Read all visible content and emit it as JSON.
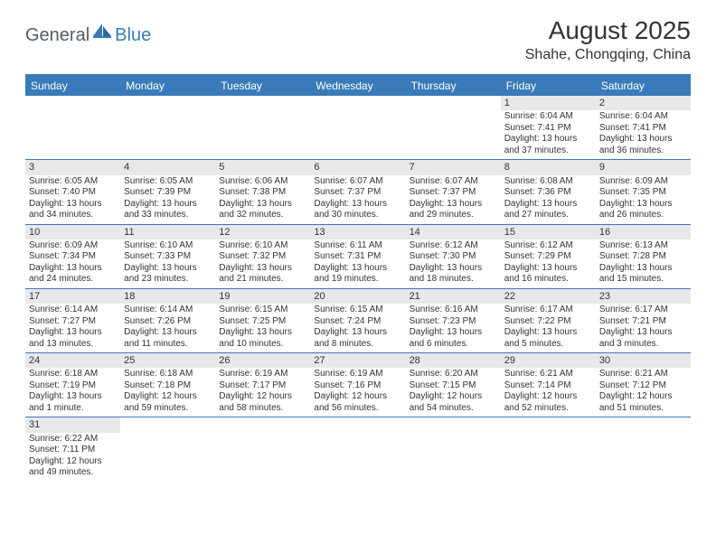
{
  "logo": {
    "general": "General",
    "blue": "Blue"
  },
  "title": "August 2025",
  "location": "Shahe, Chongqing, China",
  "colors": {
    "header_bg": "#3a7ab8",
    "header_text": "#ffffff",
    "daynum_bg": "#e7e8e9",
    "border": "#3a7ab8",
    "text": "#333333",
    "logo_gray": "#555c63",
    "logo_blue": "#3a7ab8"
  },
  "weekdays": [
    "Sunday",
    "Monday",
    "Tuesday",
    "Wednesday",
    "Thursday",
    "Friday",
    "Saturday"
  ],
  "weeks": [
    [
      null,
      null,
      null,
      null,
      null,
      {
        "n": "1",
        "sr": "Sunrise: 6:04 AM",
        "ss": "Sunset: 7:41 PM",
        "d1": "Daylight: 13 hours",
        "d2": "and 37 minutes."
      },
      {
        "n": "2",
        "sr": "Sunrise: 6:04 AM",
        "ss": "Sunset: 7:41 PM",
        "d1": "Daylight: 13 hours",
        "d2": "and 36 minutes."
      }
    ],
    [
      {
        "n": "3",
        "sr": "Sunrise: 6:05 AM",
        "ss": "Sunset: 7:40 PM",
        "d1": "Daylight: 13 hours",
        "d2": "and 34 minutes."
      },
      {
        "n": "4",
        "sr": "Sunrise: 6:05 AM",
        "ss": "Sunset: 7:39 PM",
        "d1": "Daylight: 13 hours",
        "d2": "and 33 minutes."
      },
      {
        "n": "5",
        "sr": "Sunrise: 6:06 AM",
        "ss": "Sunset: 7:38 PM",
        "d1": "Daylight: 13 hours",
        "d2": "and 32 minutes."
      },
      {
        "n": "6",
        "sr": "Sunrise: 6:07 AM",
        "ss": "Sunset: 7:37 PM",
        "d1": "Daylight: 13 hours",
        "d2": "and 30 minutes."
      },
      {
        "n": "7",
        "sr": "Sunrise: 6:07 AM",
        "ss": "Sunset: 7:37 PM",
        "d1": "Daylight: 13 hours",
        "d2": "and 29 minutes."
      },
      {
        "n": "8",
        "sr": "Sunrise: 6:08 AM",
        "ss": "Sunset: 7:36 PM",
        "d1": "Daylight: 13 hours",
        "d2": "and 27 minutes."
      },
      {
        "n": "9",
        "sr": "Sunrise: 6:09 AM",
        "ss": "Sunset: 7:35 PM",
        "d1": "Daylight: 13 hours",
        "d2": "and 26 minutes."
      }
    ],
    [
      {
        "n": "10",
        "sr": "Sunrise: 6:09 AM",
        "ss": "Sunset: 7:34 PM",
        "d1": "Daylight: 13 hours",
        "d2": "and 24 minutes."
      },
      {
        "n": "11",
        "sr": "Sunrise: 6:10 AM",
        "ss": "Sunset: 7:33 PM",
        "d1": "Daylight: 13 hours",
        "d2": "and 23 minutes."
      },
      {
        "n": "12",
        "sr": "Sunrise: 6:10 AM",
        "ss": "Sunset: 7:32 PM",
        "d1": "Daylight: 13 hours",
        "d2": "and 21 minutes."
      },
      {
        "n": "13",
        "sr": "Sunrise: 6:11 AM",
        "ss": "Sunset: 7:31 PM",
        "d1": "Daylight: 13 hours",
        "d2": "and 19 minutes."
      },
      {
        "n": "14",
        "sr": "Sunrise: 6:12 AM",
        "ss": "Sunset: 7:30 PM",
        "d1": "Daylight: 13 hours",
        "d2": "and 18 minutes."
      },
      {
        "n": "15",
        "sr": "Sunrise: 6:12 AM",
        "ss": "Sunset: 7:29 PM",
        "d1": "Daylight: 13 hours",
        "d2": "and 16 minutes."
      },
      {
        "n": "16",
        "sr": "Sunrise: 6:13 AM",
        "ss": "Sunset: 7:28 PM",
        "d1": "Daylight: 13 hours",
        "d2": "and 15 minutes."
      }
    ],
    [
      {
        "n": "17",
        "sr": "Sunrise: 6:14 AM",
        "ss": "Sunset: 7:27 PM",
        "d1": "Daylight: 13 hours",
        "d2": "and 13 minutes."
      },
      {
        "n": "18",
        "sr": "Sunrise: 6:14 AM",
        "ss": "Sunset: 7:26 PM",
        "d1": "Daylight: 13 hours",
        "d2": "and 11 minutes."
      },
      {
        "n": "19",
        "sr": "Sunrise: 6:15 AM",
        "ss": "Sunset: 7:25 PM",
        "d1": "Daylight: 13 hours",
        "d2": "and 10 minutes."
      },
      {
        "n": "20",
        "sr": "Sunrise: 6:15 AM",
        "ss": "Sunset: 7:24 PM",
        "d1": "Daylight: 13 hours",
        "d2": "and 8 minutes."
      },
      {
        "n": "21",
        "sr": "Sunrise: 6:16 AM",
        "ss": "Sunset: 7:23 PM",
        "d1": "Daylight: 13 hours",
        "d2": "and 6 minutes."
      },
      {
        "n": "22",
        "sr": "Sunrise: 6:17 AM",
        "ss": "Sunset: 7:22 PM",
        "d1": "Daylight: 13 hours",
        "d2": "and 5 minutes."
      },
      {
        "n": "23",
        "sr": "Sunrise: 6:17 AM",
        "ss": "Sunset: 7:21 PM",
        "d1": "Daylight: 13 hours",
        "d2": "and 3 minutes."
      }
    ],
    [
      {
        "n": "24",
        "sr": "Sunrise: 6:18 AM",
        "ss": "Sunset: 7:19 PM",
        "d1": "Daylight: 13 hours",
        "d2": "and 1 minute."
      },
      {
        "n": "25",
        "sr": "Sunrise: 6:18 AM",
        "ss": "Sunset: 7:18 PM",
        "d1": "Daylight: 12 hours",
        "d2": "and 59 minutes."
      },
      {
        "n": "26",
        "sr": "Sunrise: 6:19 AM",
        "ss": "Sunset: 7:17 PM",
        "d1": "Daylight: 12 hours",
        "d2": "and 58 minutes."
      },
      {
        "n": "27",
        "sr": "Sunrise: 6:19 AM",
        "ss": "Sunset: 7:16 PM",
        "d1": "Daylight: 12 hours",
        "d2": "and 56 minutes."
      },
      {
        "n": "28",
        "sr": "Sunrise: 6:20 AM",
        "ss": "Sunset: 7:15 PM",
        "d1": "Daylight: 12 hours",
        "d2": "and 54 minutes."
      },
      {
        "n": "29",
        "sr": "Sunrise: 6:21 AM",
        "ss": "Sunset: 7:14 PM",
        "d1": "Daylight: 12 hours",
        "d2": "and 52 minutes."
      },
      {
        "n": "30",
        "sr": "Sunrise: 6:21 AM",
        "ss": "Sunset: 7:12 PM",
        "d1": "Daylight: 12 hours",
        "d2": "and 51 minutes."
      }
    ],
    [
      {
        "n": "31",
        "sr": "Sunrise: 6:22 AM",
        "ss": "Sunset: 7:11 PM",
        "d1": "Daylight: 12 hours",
        "d2": "and 49 minutes."
      },
      null,
      null,
      null,
      null,
      null,
      null
    ]
  ]
}
